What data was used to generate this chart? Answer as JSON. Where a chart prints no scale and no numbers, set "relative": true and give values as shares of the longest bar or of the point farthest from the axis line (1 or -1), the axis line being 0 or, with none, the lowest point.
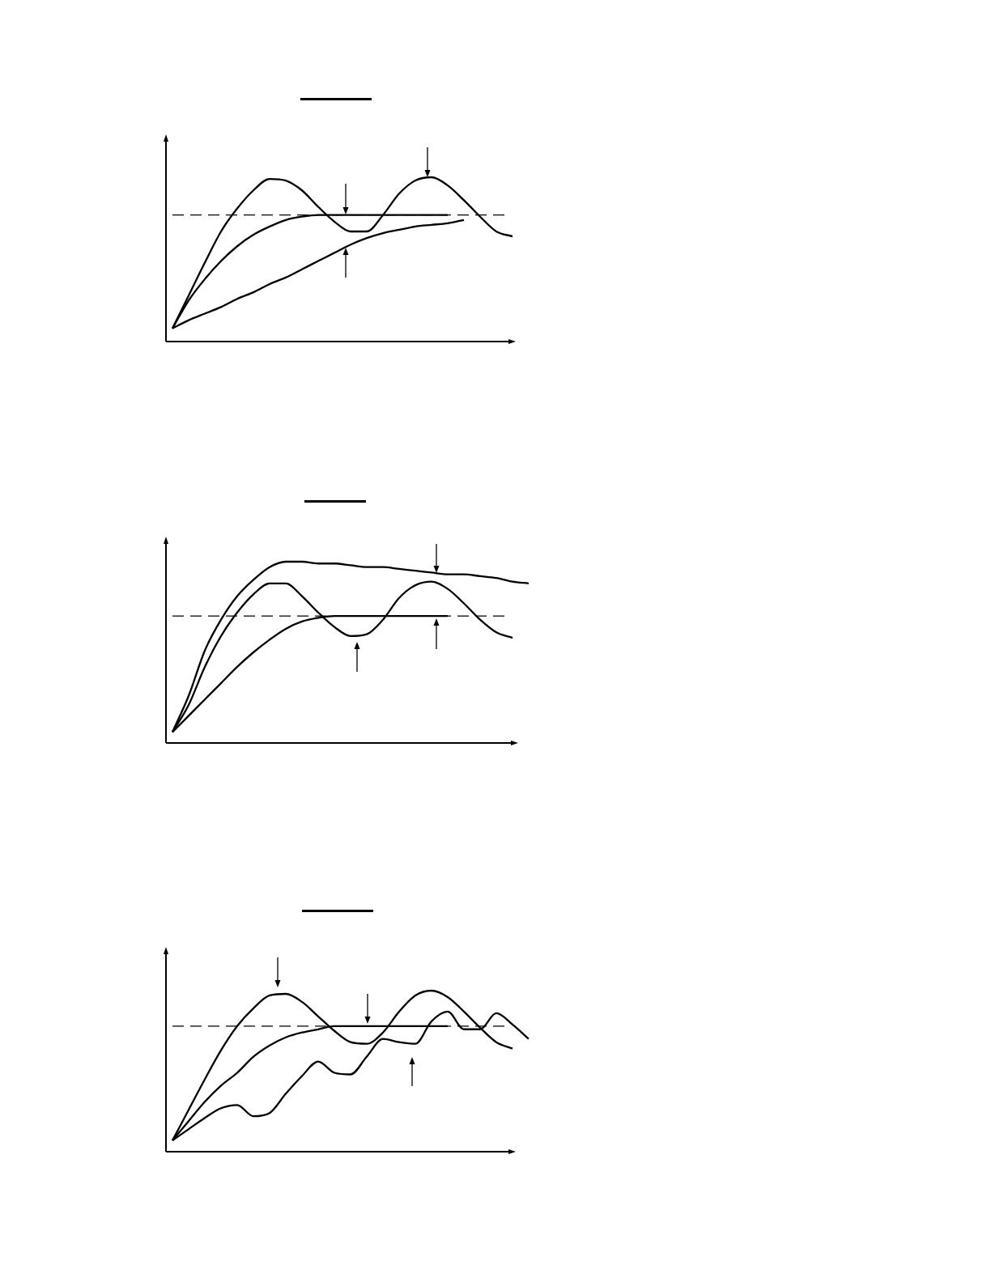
{
  "chart_data": [
    {
      "type": "line",
      "relative": true,
      "categories": [
        null,
        null,
        null,
        null,
        null,
        null,
        null,
        null,
        null,
        null,
        null,
        null,
        null,
        null,
        null,
        null,
        null,
        null,
        null,
        null,
        null,
        null,
        null
      ],
      "series": [
        {
          "color": "#000000",
          "values": [
            0.08,
            0.28,
            0.48,
            0.67,
            0.81,
            0.92,
            0.99,
            0.98,
            0.92,
            0.82,
            0.73,
            0.67,
            0.67,
            0.77,
            0.9,
            0.98,
            1,
            0.95,
            0.86,
            0.76,
            0.67,
            0.64,
            null
          ]
        },
        {
          "color": "#000000",
          "values": [
            0.08,
            0.25,
            0.38,
            0.49,
            0.58,
            0.65,
            0.7,
            0.74,
            0.76,
            0.77,
            0.77,
            0.77,
            0.77,
            0.77,
            0.77,
            0.77,
            0.77,
            0.77,
            null,
            null,
            null,
            null,
            null
          ]
        },
        {
          "color": "#000000",
          "values": [
            0.08,
            0.13,
            0.17,
            0.21,
            0.26,
            0.3,
            0.35,
            0.39,
            0.44,
            0.49,
            0.54,
            0.59,
            0.63,
            0.66,
            0.68,
            0.7,
            0.71,
            0.72,
            0.74,
            null,
            null,
            null,
            null
          ]
        }
      ],
      "ref_lines": [
        {
          "axis": "y",
          "value": 0.77,
          "line_style": "dashed",
          "color": "#000000"
        }
      ]
    },
    {
      "type": "line",
      "relative": true,
      "categories": [
        null,
        null,
        null,
        null,
        null,
        null,
        null,
        null,
        null,
        null,
        null,
        null,
        null,
        null,
        null,
        null,
        null,
        null,
        null,
        null,
        null,
        null,
        null
      ],
      "series": [
        {
          "color": "#000000",
          "values": [
            0.06,
            0.26,
            0.51,
            0.68,
            0.81,
            0.9,
            0.97,
            1,
            1,
            0.99,
            0.99,
            0.98,
            0.97,
            0.97,
            0.96,
            0.95,
            0.94,
            0.93,
            0.93,
            0.92,
            0.91,
            0.89,
            0.88
          ]
        },
        {
          "color": "#000000",
          "values": [
            0.06,
            0.21,
            0.42,
            0.59,
            0.72,
            0.82,
            0.88,
            0.88,
            0.81,
            0.72,
            0.64,
            0.59,
            0.6,
            0.68,
            0.8,
            0.87,
            0.89,
            0.85,
            0.77,
            0.68,
            0.61,
            0.58,
            null
          ]
        },
        {
          "color": "#000000",
          "values": [
            0.06,
            0.15,
            0.24,
            0.33,
            0.42,
            0.5,
            0.57,
            0.63,
            0.67,
            0.69,
            0.7,
            0.7,
            0.7,
            0.7,
            0.7,
            0.7,
            0.7,
            0.7,
            null,
            null,
            null,
            null,
            null
          ]
        }
      ],
      "ref_lines": [
        {
          "axis": "y",
          "value": 0.7,
          "line_style": "dashed",
          "color": "#000000"
        }
      ]
    },
    {
      "type": "line",
      "relative": true,
      "categories": [
        null,
        null,
        null,
        null,
        null,
        null,
        null,
        null,
        null,
        null,
        null,
        null,
        null,
        null,
        null,
        null,
        null,
        null,
        null,
        null,
        null,
        null,
        null
      ],
      "series": [
        {
          "color": "#000000",
          "values": [
            0.07,
            0.26,
            0.45,
            0.63,
            0.78,
            0.89,
            0.97,
            0.98,
            0.93,
            0.84,
            0.75,
            0.68,
            0.67,
            0.74,
            0.87,
            0.97,
            1,
            0.96,
            0.87,
            0.77,
            0.68,
            0.64,
            null
          ]
        },
        {
          "color": "#000000",
          "values": [
            0.07,
            0.19,
            0.31,
            0.41,
            0.49,
            0.59,
            0.66,
            0.71,
            0.74,
            0.76,
            0.78,
            0.78,
            0.78,
            0.78,
            0.78,
            0.78,
            0.78,
            0.78,
            null,
            null,
            null,
            null,
            null
          ]
        },
        {
          "color": "#000000",
          "values": [
            0.07,
            0.14,
            0.21,
            0.27,
            0.29,
            0.22,
            0.24,
            0.36,
            0.47,
            0.56,
            0.49,
            0.48,
            0.59,
            0.7,
            0.68,
            0.67,
            0.81,
            0.87,
            0.76,
            0.76,
            0.86,
            0.79,
            0.7
          ]
        }
      ],
      "ref_lines": [
        {
          "axis": "y",
          "value": 0.78,
          "line_style": "dashed",
          "color": "#000000"
        }
      ]
    }
  ]
}
